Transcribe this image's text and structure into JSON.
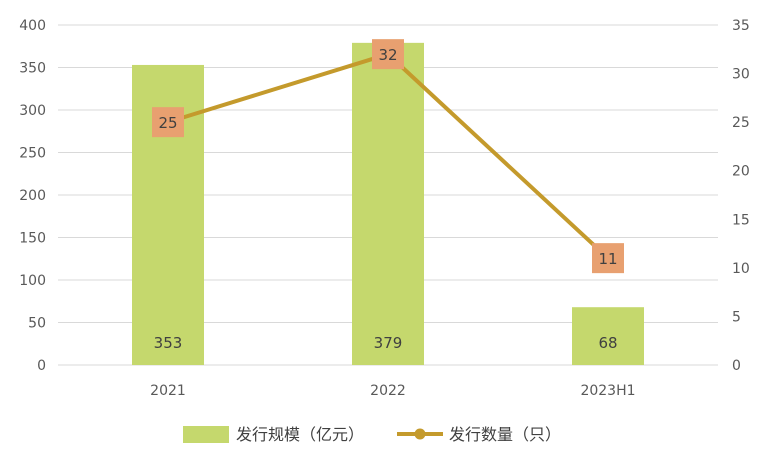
{
  "chart_data": {
    "type": "bar",
    "categories": [
      "2021",
      "2022",
      "2023H1"
    ],
    "series": [
      {
        "name": "发行规模（亿元）",
        "type": "bar",
        "axis": "left",
        "values": [
          353,
          379,
          68
        ],
        "color": "#c5d86d"
      },
      {
        "name": "发行数量（只）",
        "type": "line",
        "axis": "right",
        "values": [
          25,
          32,
          11
        ],
        "color": "#c49a2c",
        "label_bg": "#e8a070"
      }
    ],
    "y_left": {
      "min": 0,
      "max": 400,
      "step": 50,
      "ticks": [
        "0",
        "50",
        "100",
        "150",
        "200",
        "250",
        "300",
        "350",
        "400"
      ]
    },
    "y_right": {
      "min": 0,
      "max": 35,
      "step": 5,
      "ticks": [
        "0",
        "5",
        "10",
        "15",
        "20",
        "25",
        "30",
        "35"
      ]
    },
    "grid": true,
    "legend_position": "bottom"
  }
}
